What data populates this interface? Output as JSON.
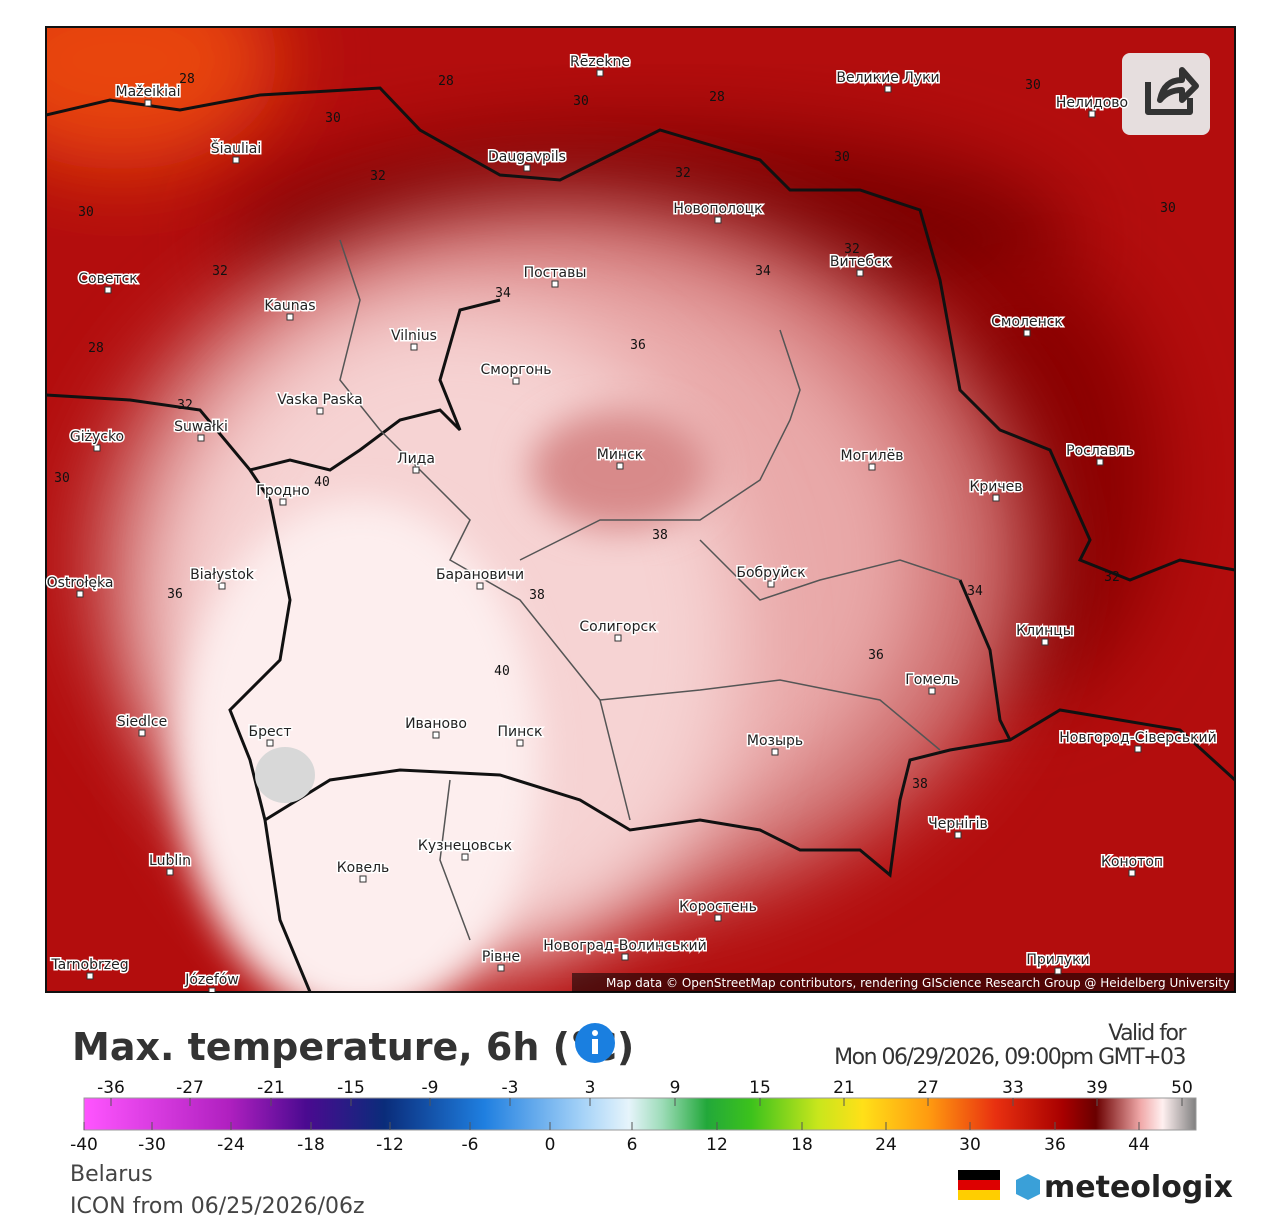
{
  "header": {
    "title": "Max. temperature, 6h (°C)",
    "valid_label": "Valid for",
    "valid_time": "Mon 06/29/2026, 09:00pm GMT+03"
  },
  "map": {
    "attribution": "Map data © OpenStreetMap contributors, rendering GIScience Research Group @ Heidelberg University",
    "cities": [
      "Rēzekne",
      "Великие Луки",
      "Mažeikiai",
      "Šiauliai",
      "Daugavpils",
      "Новополоцк",
      "Нелидово",
      "Советск",
      "Kaunas",
      "Поставы",
      "Витебск",
      "Vilnius",
      "Смоленск",
      "Сморгонь",
      "Vaska Paska",
      "Giżycko",
      "Suwałki",
      "Лида",
      "Минск",
      "Могилёв",
      "Рославль",
      "Кричев",
      "Гродно",
      "Białystok",
      "Барановичи",
      "Бобруйск",
      "Ostrołęka",
      "Солигорск",
      "Клинцы",
      "Гомель",
      "Siedlce",
      "Брест",
      "Иваново",
      "Пинск",
      "Мозырь",
      "Новгород-Сіверський",
      "Чернігів",
      "Lublin",
      "Кузнецовськ",
      "Ковель",
      "Конотоп",
      "Коростень",
      "Рівне",
      "Новоград-Волинський",
      "Прилуки",
      "Tarnobrzeg",
      "Józefów"
    ],
    "contour_labels": [
      28,
      28,
      30,
      28,
      30,
      30,
      32,
      32,
      30,
      30,
      30,
      32,
      32,
      34,
      34,
      28,
      36,
      32,
      40,
      30,
      38,
      32,
      34,
      36,
      38,
      36,
      40,
      38
    ]
  },
  "legend": {
    "top_labels": [
      -36,
      -27,
      -21,
      -15,
      -9,
      -3,
      3,
      9,
      15,
      21,
      27,
      33,
      39,
      50
    ],
    "bottom_labels": [
      -40,
      -30,
      -24,
      -18,
      -12,
      -6,
      0,
      6,
      12,
      18,
      24,
      30,
      36,
      44
    ]
  },
  "footer": {
    "region": "Belarus",
    "model": "ICON from 06/25/2026/06z",
    "brand": "meteologix"
  }
}
